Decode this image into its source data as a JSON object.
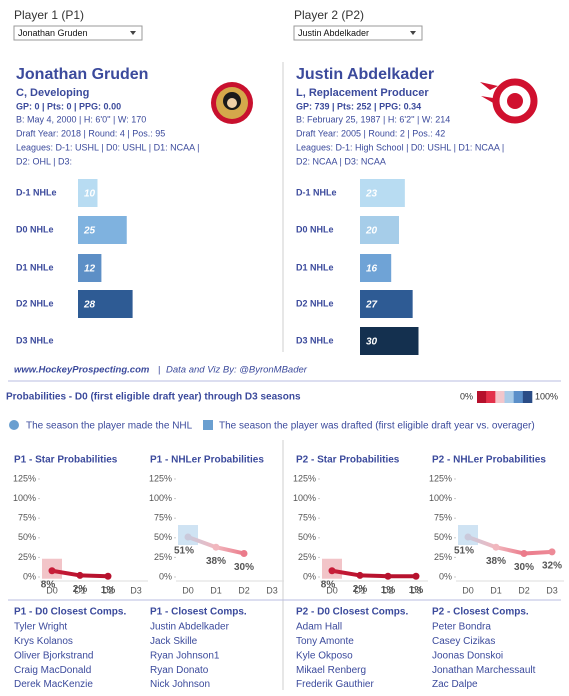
{
  "players": [
    {
      "label": "Player 1 (P1)",
      "selected": "Jonathan Gruden",
      "name": "Jonathan Gruden",
      "role": "C, Developing",
      "stats": "GP: 0 | Pts: 0 | PPG: 0.00",
      "bio": [
        "B: May 4, 2000 | H: 6'0'' | W: 170",
        "Draft Year: 2018 | Round: 4 | Pos.: 95",
        "Leagues: D-1: USHL | D0: USHL | D1: NCAA |",
        "D2: OHL | D3:"
      ]
    },
    {
      "label": "Player 2 (P2)",
      "selected": "Justin Abdelkader",
      "name": "Justin Abdelkader",
      "role": "L, Replacement Producer",
      "stats": "GP: 739 | Pts: 252 | PPG: 0.34",
      "bio": [
        "B: February 25, 1987 | H: 6'2'' | W: 214",
        "Draft Year: 2005 | Round: 2 | Pos.: 42",
        "Leagues: D-1: High School | D0: USHL | D1: NCAA |",
        "D2: NCAA | D3: NCAA"
      ]
    }
  ],
  "footer": {
    "site": "www.HockeyProspecting.com",
    "separator": "|",
    "credit": "Data and Viz By: @ByronMBader"
  },
  "probabilities": {
    "title": "Probabilities - D0 (first eligible draft year) through D3 seasons",
    "legend_low": "0%",
    "legend_high": "100%",
    "color_scale": [
      "#b5102c",
      "#e3304a",
      "#f3c6cb",
      "#a9cbe8",
      "#5b8fc9",
      "#2a4c86"
    ],
    "made_nhl_label": "The season the player made the NHL",
    "drafted_label": "The season the player was drafted (first eligible draft year vs. overager)",
    "marker_color": "#6a9fd0"
  },
  "chart_data": [
    {
      "type": "bar",
      "categories": [
        "D-1 NHLe",
        "D0 NHLe",
        "D1 NHLe",
        "D2 NHLe",
        "D3 NHLe"
      ],
      "values": [
        10,
        25,
        12,
        28,
        null
      ],
      "colors": [
        "#b8dcf2",
        "#7fb2df",
        "#5d8fc6",
        "#2e5b94",
        null
      ]
    },
    {
      "type": "bar",
      "categories": [
        "D-1 NHLe",
        "D0 NHLe",
        "D1 NHLe",
        "D2 NHLe",
        "D3 NHLe"
      ],
      "values": [
        23,
        20,
        16,
        27,
        30
      ],
      "colors": [
        "#b8dcf2",
        "#a6cde9",
        "#6fa3d6",
        "#2e5b94",
        "#14304f"
      ]
    },
    {
      "type": "line",
      "title": "P1 - Star Probabilities",
      "categories": [
        "D0",
        "D1",
        "D2",
        "D3"
      ],
      "values": [
        8,
        2,
        1,
        null
      ],
      "value_labels": [
        "8%",
        "2%",
        "1%",
        null
      ],
      "drafted": "D0",
      "highlight_color": "#f2c4c8",
      "ylim": [
        0,
        125
      ],
      "yticks": [
        {
          "value": 0,
          "label": "0%"
        },
        {
          "value": 25,
          "label": "25%"
        },
        {
          "value": 50,
          "label": "50%"
        },
        {
          "value": 75,
          "label": "75%"
        },
        {
          "value": 100,
          "label": "100%"
        },
        {
          "value": 125,
          "label": "125%"
        }
      ]
    },
    {
      "type": "line",
      "title": "P1 - NHLer Probabilities",
      "categories": [
        "D0",
        "D1",
        "D2",
        "D3"
      ],
      "values": [
        51,
        38,
        30,
        null
      ],
      "value_labels": [
        "51%",
        "38%",
        "30%",
        null
      ],
      "drafted": "D0",
      "highlight_color": "#cfe3f3",
      "ylim": [
        0,
        125
      ],
      "yticks": [
        {
          "value": 0,
          "label": "0%"
        },
        {
          "value": 25,
          "label": "25%"
        },
        {
          "value": 50,
          "label": "50%"
        },
        {
          "value": 75,
          "label": "75%"
        },
        {
          "value": 100,
          "label": "100%"
        },
        {
          "value": 125,
          "label": "125%"
        }
      ]
    },
    {
      "type": "line",
      "title": "P2 - Star Probabilities",
      "categories": [
        "D0",
        "D1",
        "D2",
        "D3"
      ],
      "values": [
        8,
        2,
        1,
        1
      ],
      "value_labels": [
        "8%",
        "2%",
        "1%",
        "1%"
      ],
      "drafted": "D0",
      "highlight_color": "#f2c4c8",
      "ylim": [
        0,
        125
      ],
      "yticks": [
        {
          "value": 0,
          "label": "0%"
        },
        {
          "value": 25,
          "label": "25%"
        },
        {
          "value": 50,
          "label": "50%"
        },
        {
          "value": 75,
          "label": "75%"
        },
        {
          "value": 100,
          "label": "100%"
        },
        {
          "value": 125,
          "label": "125%"
        }
      ]
    },
    {
      "type": "line",
      "title": "P2 - NHLer Probabilities",
      "categories": [
        "D0",
        "D1",
        "D2",
        "D3"
      ],
      "values": [
        51,
        38,
        30,
        32
      ],
      "value_labels": [
        "51%",
        "38%",
        "30%",
        "32%"
      ],
      "drafted": "D0",
      "highlight_color": "#cfe3f3",
      "ylim": [
        0,
        125
      ],
      "yticks": [
        {
          "value": 0,
          "label": "0%"
        },
        {
          "value": 25,
          "label": "25%"
        },
        {
          "value": 50,
          "label": "50%"
        },
        {
          "value": 75,
          "label": "75%"
        },
        {
          "value": 100,
          "label": "100%"
        },
        {
          "value": 125,
          "label": "125%"
        }
      ]
    }
  ],
  "comps": [
    {
      "title": "P1 - D0 Closest Comps.",
      "names": [
        "Tyler Wright",
        "Krys Kolanos",
        "Oliver Bjorkstrand",
        "Craig MacDonald",
        "Derek MacKenzie"
      ]
    },
    {
      "title": "P1 - Closest Comps.",
      "names": [
        "Justin Abdelkader",
        "Jack Skille",
        "Ryan Johnson1",
        "Ryan Donato",
        "Nick Johnson"
      ]
    },
    {
      "title": "P2 - D0 Closest Comps.",
      "names": [
        "Adam Hall",
        "Tony Amonte",
        "Kyle Okposo",
        "Mikael Renberg",
        "Frederik Gauthier"
      ]
    },
    {
      "title": "P2 - Closest Comps.",
      "names": [
        "Peter Bondra",
        "Casey Cizikas",
        "Joonas Donskoi",
        "Jonathan Marchessault",
        "Zac Dalpe"
      ]
    }
  ]
}
